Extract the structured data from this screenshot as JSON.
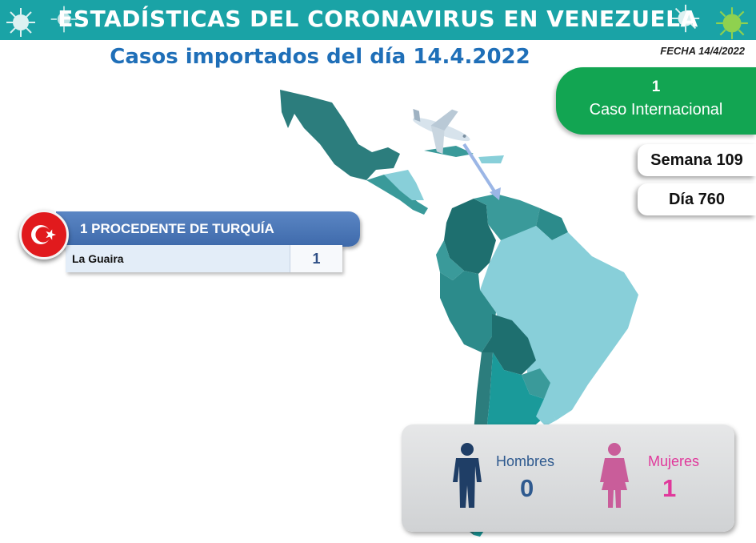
{
  "header": {
    "title": "ESTADÍSTICAS DEL CORONAVIRUS EN VENEZUELA"
  },
  "subtitle": "Casos importados del día 14.4.2022",
  "date_label": "FECHA 14/4/2022",
  "international": {
    "count": "1",
    "label": "Caso Internacional"
  },
  "week_label": "Semana 109",
  "day_label": "Día 760",
  "origin": {
    "title": "1 PROCEDENTE DE TURQUÍA",
    "rows": [
      {
        "state": "La Guaira",
        "count": "1"
      }
    ]
  },
  "gender": {
    "men_label": "Hombres",
    "men_count": "0",
    "women_label": "Mujeres",
    "women_count": "1"
  },
  "colors": {
    "header": "#1aa3a6",
    "title_blue": "#1f6fb8",
    "green_card": "#12a552",
    "origin_bar": "#4a76b8",
    "men": "#2f5a8f",
    "women": "#e0389b",
    "map_dark": "#2c7d7d",
    "map_light": "#88cfd9"
  },
  "icons": [
    "virus-icon",
    "airplane-icon",
    "turkey-flag-icon",
    "man-icon",
    "woman-icon"
  ]
}
